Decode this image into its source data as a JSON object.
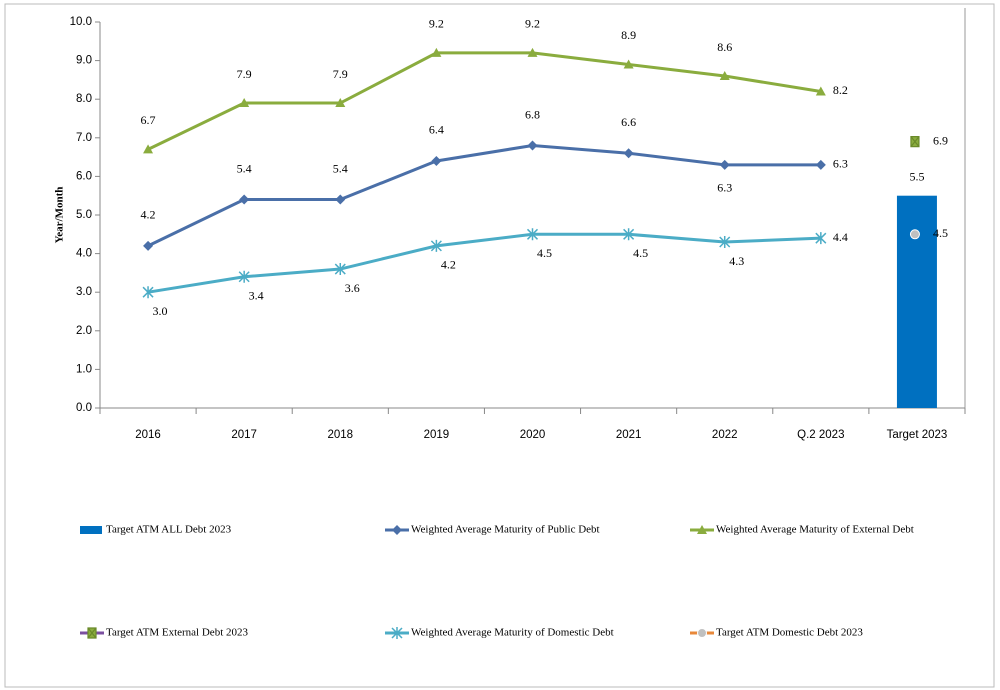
{
  "chart_data": {
    "type": "line",
    "y_label": "Year/Month",
    "categories": [
      "2016",
      "2017",
      "2018",
      "2019",
      "2020",
      "2021",
      "2022",
      "Q.2 2023",
      "Target 2023"
    ],
    "ylim": [
      0,
      10
    ],
    "yticks": [
      {
        "value": 0,
        "label": "0.0"
      },
      {
        "value": 1,
        "label": "1.0"
      },
      {
        "value": 2,
        "label": "2.0"
      },
      {
        "value": 3,
        "label": "3.0"
      },
      {
        "value": 4,
        "label": "4.0"
      },
      {
        "value": 5,
        "label": "5.0"
      },
      {
        "value": 6,
        "label": "6.0"
      },
      {
        "value": 7,
        "label": "7.0"
      },
      {
        "value": 8,
        "label": "8.0"
      },
      {
        "value": 9,
        "label": "9.0"
      },
      {
        "value": 10,
        "label": "10.0"
      }
    ],
    "series": [
      {
        "name": "Target ATM  ALL Debt 2023",
        "kind": "bar",
        "color": "#0070c0",
        "values": [
          null,
          null,
          null,
          null,
          null,
          null,
          null,
          null,
          5.5
        ],
        "value_labels": [
          null,
          null,
          null,
          null,
          null,
          null,
          null,
          null,
          "5.5"
        ]
      },
      {
        "name": "Weighted Average Maturity of Public Debt",
        "kind": "line",
        "marker": "diamond",
        "color": "#4a6fa8",
        "values": [
          4.2,
          5.4,
          5.4,
          6.4,
          6.8,
          6.6,
          6.3,
          6.3,
          null
        ],
        "value_labels": [
          "4.2",
          "5.4",
          "5.4",
          "6.4",
          "6.8",
          "6.6",
          "6.3",
          "6.3",
          null
        ]
      },
      {
        "name": "Weighted Average Maturity of External Debt",
        "kind": "line",
        "marker": "triangle",
        "color": "#8aac3e",
        "values": [
          6.7,
          7.9,
          7.9,
          9.2,
          9.2,
          8.9,
          8.6,
          8.2,
          null
        ],
        "value_labels": [
          "6.7",
          "7.9",
          "7.9",
          "9.2",
          "9.2",
          "8.9",
          "8.6",
          "8.2",
          null
        ]
      },
      {
        "name": "Target ATM External Debt 2023",
        "kind": "point",
        "marker": "x",
        "color": "#8aac3e",
        "legend_color": "#7b4fa0",
        "values": [
          null,
          null,
          null,
          null,
          null,
          null,
          null,
          null,
          6.9
        ],
        "value_labels": [
          null,
          null,
          null,
          null,
          null,
          null,
          null,
          null,
          "6.9"
        ]
      },
      {
        "name": "Weighted Average Maturity of Domestic Debt",
        "kind": "line",
        "marker": "star",
        "color": "#4bacc6",
        "values": [
          3.0,
          3.4,
          3.6,
          4.2,
          4.5,
          4.5,
          4.3,
          4.4,
          null
        ],
        "value_labels": [
          "3.0",
          "3.4",
          "3.6",
          "4.2",
          "4.5",
          "4.5",
          "4.3",
          "4.4",
          null
        ]
      },
      {
        "name": "Target ATM Domestic Debt 2023",
        "kind": "point",
        "marker": "circle",
        "color": "#c0c0c0",
        "legend_color": "#e8883a",
        "values": [
          null,
          null,
          null,
          null,
          null,
          null,
          null,
          null,
          4.5
        ],
        "value_labels": [
          null,
          null,
          null,
          null,
          null,
          null,
          null,
          null,
          "4.5"
        ]
      }
    ]
  }
}
